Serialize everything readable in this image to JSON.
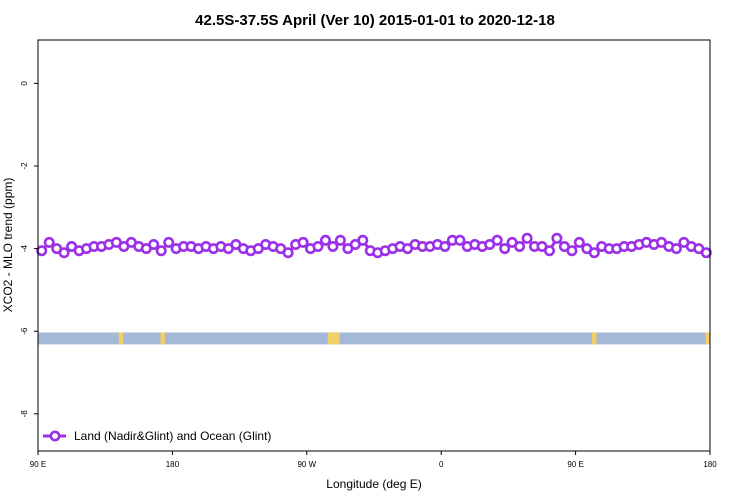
{
  "chart_data": {
    "type": "line",
    "title": "42.5S-37.5S April (Ver 10)   2015-01-01 to 2020-12-18",
    "xlabel": "Longitude (deg E)",
    "ylabel": "XCO2 - MLO trend (ppm)",
    "xlim": [
      90,
      540
    ],
    "ylim": [
      -8.9,
      1.05
    ],
    "x_ticks": [
      {
        "value": 90,
        "label": "90 E"
      },
      {
        "value": 180,
        "label": "180"
      },
      {
        "value": 270,
        "label": "90 W"
      },
      {
        "value": 360,
        "label": "0"
      },
      {
        "value": 450,
        "label": "90 E"
      },
      {
        "value": 540,
        "label": "180"
      }
    ],
    "y_ticks": [
      {
        "value": 0,
        "label": "0"
      },
      {
        "value": -2,
        "label": "-2"
      },
      {
        "value": -4,
        "label": "-4"
      },
      {
        "value": -6,
        "label": "-6"
      },
      {
        "value": -8,
        "label": "-8"
      }
    ],
    "grid": false,
    "legend_position": "bottom-left",
    "series": [
      {
        "name": "Land (Nadir&Glint) and Ocean (Glint)",
        "color": "#9b30e8",
        "x": [
          92.5,
          97.5,
          102.5,
          107.5,
          112.5,
          117.5,
          122.5,
          127.5,
          132.5,
          137.5,
          142.5,
          147.5,
          152.5,
          157.5,
          162.5,
          167.5,
          172.5,
          177.5,
          182.5,
          187.5,
          192.5,
          197.5,
          202.5,
          207.5,
          212.5,
          217.5,
          222.5,
          227.5,
          232.5,
          237.5,
          242.5,
          247.5,
          252.5,
          257.5,
          262.5,
          267.5,
          272.5,
          277.5,
          282.5,
          287.5,
          292.5,
          297.5,
          302.5,
          307.5,
          312.5,
          317.5,
          322.5,
          327.5,
          332.5,
          337.5,
          342.5,
          347.5,
          352.5,
          357.5,
          362.5,
          367.5,
          372.5,
          377.5,
          382.5,
          387.5,
          392.5,
          397.5,
          402.5,
          407.5,
          412.5,
          417.5,
          422.5,
          427.5,
          432.5,
          437.5,
          442.5,
          447.5,
          452.5,
          457.5,
          462.5,
          467.5,
          472.5,
          477.5,
          482.5,
          487.5,
          492.5,
          497.5,
          502.5,
          507.5,
          512.5,
          517.5,
          522.5,
          527.5,
          532.5,
          537.5
        ],
        "values": [
          -4.05,
          -3.85,
          -4.0,
          -4.1,
          -3.95,
          -4.05,
          -4.0,
          -3.95,
          -3.95,
          -3.9,
          -3.85,
          -3.95,
          -3.85,
          -3.95,
          -4.0,
          -3.9,
          -4.05,
          -3.85,
          -4.0,
          -3.95,
          -3.95,
          -4.0,
          -3.95,
          -4.0,
          -3.95,
          -4.0,
          -3.9,
          -4.0,
          -4.05,
          -4.0,
          -3.9,
          -3.95,
          -4.0,
          -4.1,
          -3.9,
          -3.85,
          -4.0,
          -3.95,
          -3.8,
          -3.95,
          -3.8,
          -4.0,
          -3.9,
          -3.8,
          -4.05,
          -4.1,
          -4.05,
          -4.0,
          -3.95,
          -4.0,
          -3.9,
          -3.95,
          -3.95,
          -3.9,
          -3.95,
          -3.8,
          -3.8,
          -3.95,
          -3.9,
          -3.95,
          -3.9,
          -3.8,
          -4.0,
          -3.85,
          -3.95,
          -3.75,
          -3.95,
          -3.95,
          -4.05,
          -3.75,
          -3.95,
          -4.05,
          -3.85,
          -4.0,
          -4.1,
          -3.95,
          -4.0,
          -4.0,
          -3.95,
          -3.95,
          -3.9,
          -3.85,
          -3.9,
          -3.85,
          -3.95,
          -4.0,
          -3.85,
          -3.95,
          -4.0,
          -4.1
        ]
      }
    ],
    "surface_band": {
      "y_top": -6.03,
      "y_bottom": -6.32,
      "ocean_color": "#a4b8d8",
      "land_color": "#f2cf68",
      "land_segments": [
        [
          144,
          147
        ],
        [
          172,
          175
        ],
        [
          284,
          292
        ],
        [
          461,
          464
        ],
        [
          537,
          540
        ]
      ]
    }
  }
}
